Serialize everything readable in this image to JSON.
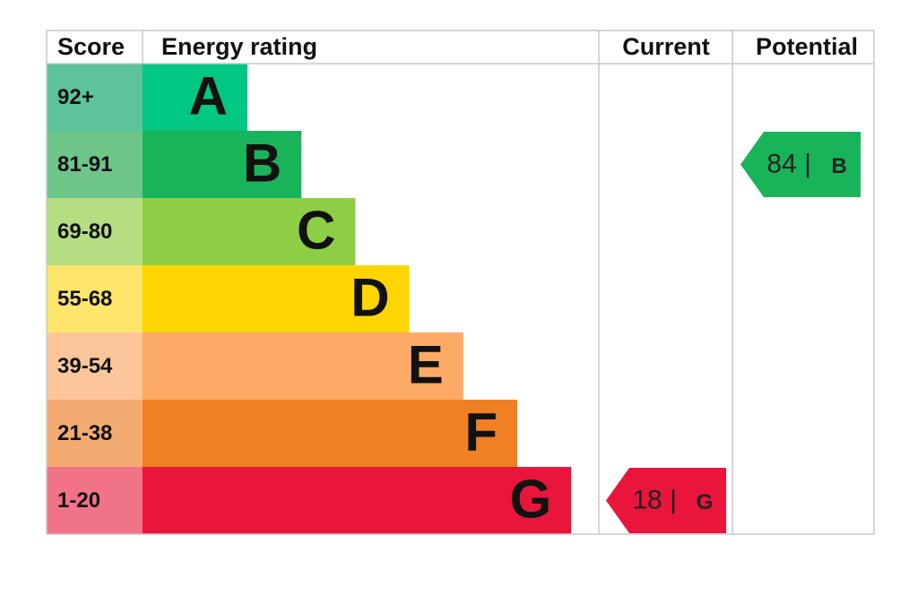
{
  "header": {
    "score": "Score",
    "rating": "Energy rating",
    "current": "Current",
    "potential": "Potential"
  },
  "bands": [
    {
      "score": "92+",
      "letter": "A",
      "color": "#00c781",
      "score_color": "#5cc39b"
    },
    {
      "score": "81-91",
      "letter": "B",
      "color": "#19b459",
      "score_color": "#6dc58a"
    },
    {
      "score": "69-80",
      "letter": "C",
      "color": "#8dce46",
      "score_color": "#b5de82"
    },
    {
      "score": "55-68",
      "letter": "D",
      "color": "#ffd500",
      "score_color": "#fde66b"
    },
    {
      "score": "39-54",
      "letter": "E",
      "color": "#fcaa65",
      "score_color": "#fdc69a"
    },
    {
      "score": "21-38",
      "letter": "F",
      "color": "#ef8023",
      "score_color": "#f4ab72"
    },
    {
      "score": "1-20",
      "letter": "G",
      "color": "#e9153b",
      "score_color": "#f07388"
    }
  ],
  "current": {
    "score": 18,
    "separator": "|",
    "band": "G"
  },
  "potential": {
    "score": 84,
    "separator": "|",
    "band": "B"
  }
}
